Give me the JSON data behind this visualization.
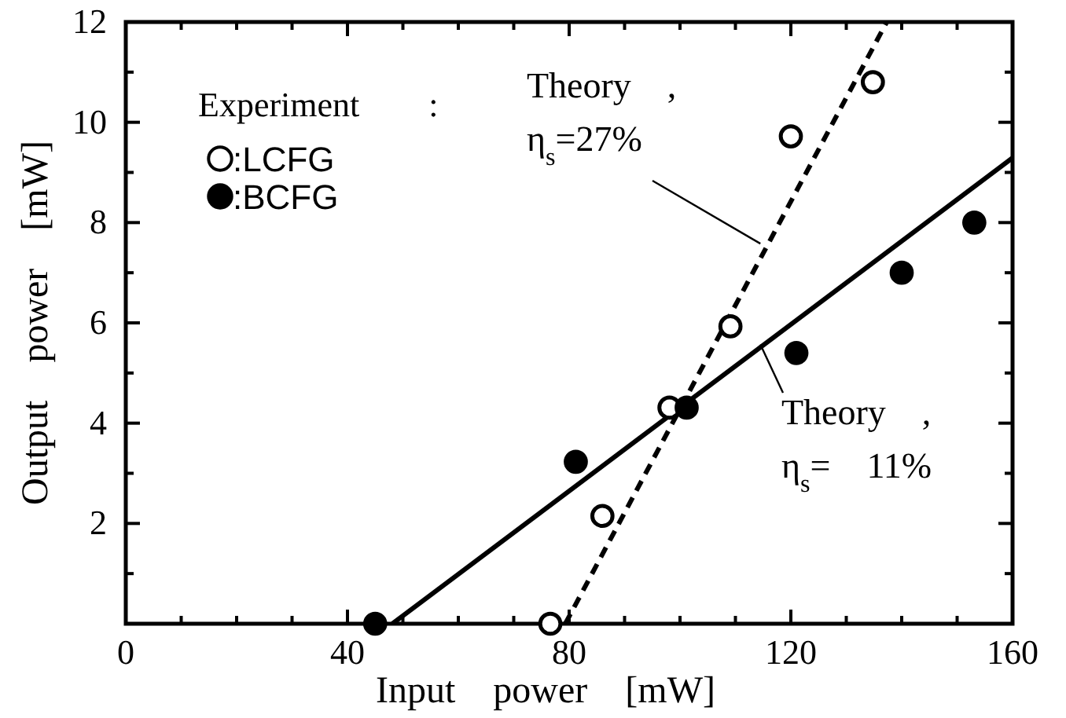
{
  "chart_data": {
    "type": "scatter",
    "xlabel": "Input　power　[mW]",
    "ylabel": "Output　power　[mW]",
    "legend_title": "Experiment　　:",
    "legend": "top left",
    "xlim": [
      0,
      160
    ],
    "ylim": [
      0,
      12
    ],
    "xticks": [
      0,
      {
        "value": 10,
        "label": null
      },
      {
        "value": 20,
        "label": null
      },
      {
        "value": 30,
        "label": null
      },
      40,
      {
        "value": 50,
        "label": null
      },
      {
        "value": 60,
        "label": null
      },
      {
        "value": 70,
        "label": null
      },
      80,
      {
        "value": 90,
        "label": null
      },
      {
        "value": 100,
        "label": null
      },
      {
        "value": 110,
        "label": null
      },
      120,
      {
        "value": 130,
        "label": null
      },
      {
        "value": 140,
        "label": null
      },
      {
        "value": 150,
        "label": null
      },
      160
    ],
    "yticks": [
      {
        "value": 0,
        "label": null
      },
      {
        "value": 1,
        "label": null
      },
      2,
      {
        "value": 3,
        "label": null
      },
      4,
      {
        "value": 5,
        "label": null
      },
      6,
      {
        "value": 7,
        "label": null
      },
      8,
      {
        "value": 9,
        "label": null
      },
      10,
      {
        "value": 11,
        "label": null
      },
      12
    ],
    "series": [
      {
        "name": ":LCFG",
        "marker": "circle",
        "color": "#ffffff",
        "x": [
          76.6,
          86,
          98.1,
          109.1,
          120,
          134.8
        ],
        "values": [
          0,
          2.15,
          4.31,
          5.93,
          9.72,
          10.8
        ]
      },
      {
        "name": ":BCFG",
        "marker": "circle",
        "color": "#000000",
        "x": [
          45,
          81.2,
          101.2,
          121,
          140,
          153.1
        ],
        "values": [
          0,
          3.23,
          4.31,
          5.4,
          7,
          8
        ]
      },
      {
        "type": "line",
        "line_style": "dashed",
        "color": "#000000",
        "x": [
          79.3,
          137.3
        ],
        "values": [
          0,
          12
        ]
      },
      {
        "type": "line",
        "line_style": "solid",
        "color": "#000000",
        "x": [
          48.1,
          160
        ],
        "values": [
          0,
          9.29
        ]
      }
    ],
    "annotations": [
      {
        "text": "Theory　,\nη$_{s}$=27%",
        "x": 114.5,
        "y": 7.58
      },
      {
        "text": "Theory　,\nη$_{s}$=　11%",
        "x": 114.5,
        "y": 5.57
      }
    ]
  }
}
